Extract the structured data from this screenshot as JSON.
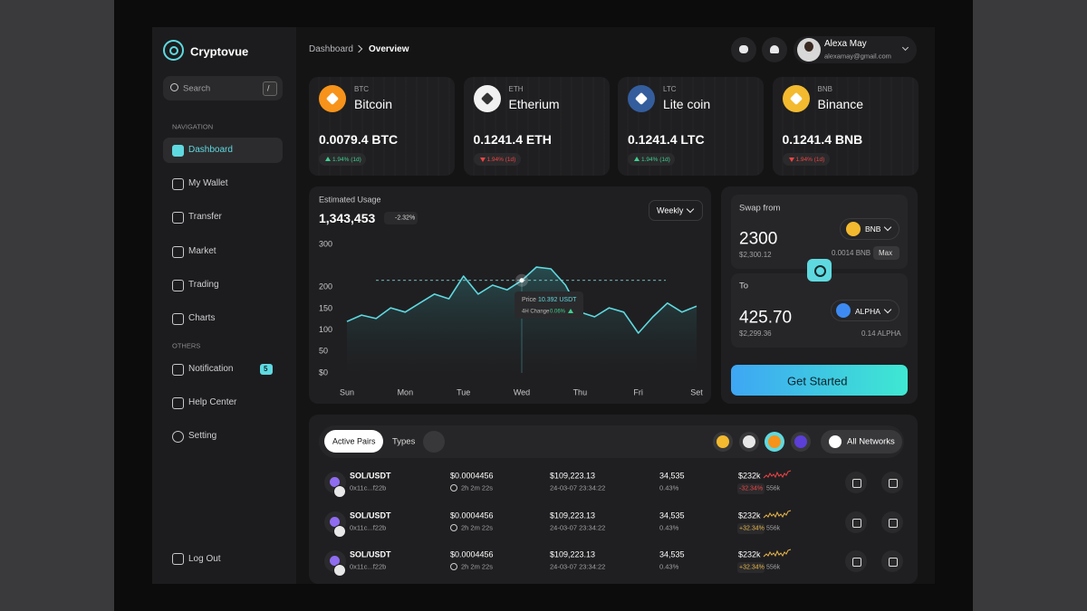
{
  "brand": "Cryptovue",
  "search": {
    "placeholder": "Search",
    "shortcut": "/"
  },
  "navigation": {
    "heading": "NAVIGATION",
    "items": [
      "Dashboard",
      "My Wallet",
      "Transfer",
      "Market",
      "Trading",
      "Charts"
    ]
  },
  "others": {
    "heading": "OTHERS",
    "items": [
      {
        "label": "Notification",
        "badge": "5"
      },
      {
        "label": "Help Center"
      },
      {
        "label": "Setting"
      }
    ]
  },
  "logout": "Log Out",
  "breadcrumb": [
    "Dashboard",
    "Overview"
  ],
  "user": {
    "name": "Alexa May",
    "email": "alexamay@gmail.com"
  },
  "coins": [
    {
      "symbol": "BTC",
      "name": "Bitcoin",
      "balance": "0.0079.4 BTC",
      "change": "1.94% (1d)",
      "trend": "up"
    },
    {
      "symbol": "ETH",
      "name": "Etherium",
      "balance": "0.1241.4 ETH",
      "change": "1.94% (1d)",
      "trend": "down"
    },
    {
      "symbol": "LTC",
      "name": "Lite coin",
      "balance": "0.1241.4 LTC",
      "change": "1.94% (1d)",
      "trend": "up"
    },
    {
      "symbol": "BNB",
      "name": "Binance",
      "balance": "0.1241.4 BNB",
      "change": "1.94% (1d)",
      "trend": "down"
    }
  ],
  "chart_data": {
    "type": "line",
    "title": "Estimated Usage",
    "total": "1,343,453",
    "change": "-2.32%",
    "period": "Weekly",
    "color": "#5fd9e0",
    "grid": false,
    "x": [
      0,
      0.25,
      0.5,
      0.75,
      1,
      1.25,
      1.5,
      1.75,
      2,
      2.25,
      2.5,
      2.75,
      3,
      3.25,
      3.5,
      3.75,
      4,
      4.25,
      4.5,
      4.75,
      5,
      5.25,
      5.5,
      5.75,
      6
    ],
    "values": [
      120,
      135,
      127,
      152,
      142,
      163,
      184,
      173,
      226,
      184,
      205,
      194,
      216,
      247,
      243,
      205,
      142,
      131,
      152,
      142,
      93,
      131,
      163,
      142,
      156
    ],
    "xlim": [
      0,
      6
    ],
    "xticks": [
      {
        "value": 0,
        "label": "Sun"
      },
      {
        "value": 1,
        "label": "Mon"
      },
      {
        "value": 2,
        "label": "Tue"
      },
      {
        "value": 3,
        "label": "Wed"
      },
      {
        "value": 4,
        "label": "Thu"
      },
      {
        "value": 5,
        "label": "Fri"
      },
      {
        "value": 6,
        "label": "Set"
      }
    ],
    "ylim": [
      0,
      300
    ],
    "yticks": [
      {
        "value": 0,
        "label": "$0"
      },
      {
        "value": 50,
        "label": "50"
      },
      {
        "value": 100,
        "label": "100"
      },
      {
        "value": 150,
        "label": "150"
      },
      {
        "value": 200,
        "label": "200"
      },
      {
        "value": 300,
        "label": "300"
      }
    ],
    "tooltip": {
      "price_label": "Price",
      "price": "10.392 USDT",
      "change_label": "4H Change",
      "change": "0.06%"
    }
  },
  "swap": {
    "from_label": "Swap from",
    "from_amount": "2300",
    "from_usd": "$2,300.12",
    "from_token": "BNB",
    "from_balance": "0.0014 BNB",
    "max": "Max",
    "to_label": "To",
    "to_amount": "425.70",
    "to_usd": "$2,299.36",
    "to_token": "ALPHA",
    "to_balance": "0.14 ALPHA",
    "button": "Get Started"
  },
  "table": {
    "tabs": [
      "Active Pairs",
      "Types"
    ],
    "network": "All Networks",
    "rows": [
      {
        "pair": "SOL/USDT",
        "address": "0x11c...f22b",
        "price": "$0.0004456",
        "time": "2h 2m 22s",
        "value": "$109,223.13",
        "date": "24-03-07 23:34:22",
        "volume": "34,535",
        "percent": "0.43%",
        "cap": "$232k",
        "change": "-32.34%",
        "amount": "556k"
      },
      {
        "pair": "SOL/USDT",
        "address": "0x11c...f22b",
        "price": "$0.0004456",
        "time": "2h 2m 22s",
        "value": "$109,223.13",
        "date": "24-03-07 23:34:22",
        "volume": "34,535",
        "percent": "0.43%",
        "cap": "$232k",
        "change": "+32.34%",
        "amount": "556k"
      },
      {
        "pair": "SOL/USDT",
        "address": "0x11c...f22b",
        "price": "$0.0004456",
        "time": "2h 2m 22s",
        "value": "$109,223.13",
        "date": "24-03-07 23:34:22",
        "volume": "34,535",
        "percent": "0.43%",
        "cap": "$232k",
        "change": "+32.34%",
        "amount": "556k"
      }
    ]
  }
}
